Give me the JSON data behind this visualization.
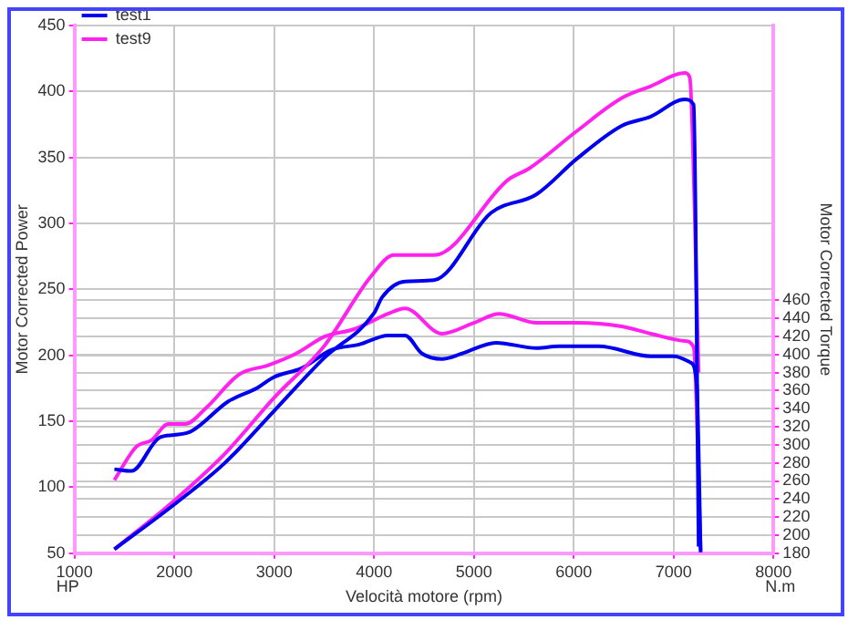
{
  "chart_data": {
    "type": "line",
    "xlabel": "Velocità motore (rpm)",
    "ylabel": "Motor Corrected Power",
    "y2label": "Motor Corrected Torque",
    "annotations": [
      "HP",
      "N.m"
    ],
    "xlim": [
      1000,
      8000
    ],
    "xticks": [
      1000,
      2000,
      3000,
      4000,
      5000,
      6000,
      7000,
      8000
    ],
    "ylim": [
      50,
      450
    ],
    "yticks": [
      50,
      100,
      150,
      200,
      250,
      300,
      350,
      400,
      450
    ],
    "y2lim": [
      180,
      764
    ],
    "y2ticks": [
      180,
      200,
      220,
      240,
      260,
      280,
      300,
      320,
      340,
      360,
      380,
      400,
      420,
      440,
      460
    ],
    "grid": true,
    "legend": "top left",
    "marker": "none",
    "line_style": "solid",
    "series": [
      {
        "name": "test1",
        "color": "#0000ee",
        "x": [
          1400,
          2000,
          2500,
          3000,
          3500,
          4000,
          4080,
          4310,
          4600,
          5170,
          5625,
          6030,
          6480,
          6770,
          7110,
          7200,
          7250
        ],
        "values": [
          53,
          87,
          118,
          158,
          198,
          232,
          244,
          256,
          257,
          308,
          322,
          349,
          374,
          381,
          394,
          390,
          55
        ]
      },
      {
        "name": "test9",
        "color": "#ff22ee",
        "x": [
          1400,
          2000,
          2500,
          3000,
          3500,
          3970,
          4200,
          4310,
          4600,
          5340,
          5560,
          6030,
          6480,
          6770,
          7110,
          7160,
          7250
        ],
        "values": [
          53,
          90,
          125,
          168,
          207,
          260,
          276,
          276,
          276,
          333,
          342,
          370,
          395,
          404,
          414,
          411,
          187
        ]
      },
      {
        "axis": "y2",
        "color": "#0000ee",
        "x": [
          1400,
          1570,
          1850,
          2000,
          2170,
          2540,
          2830,
          3000,
          3280,
          3570,
          3850,
          4140,
          4310,
          4480,
          4680,
          4880,
          5220,
          5630,
          5850,
          6250,
          6770,
          7000,
          7170,
          7230,
          7270
        ],
        "values": [
          273,
          271,
          308,
          311,
          315,
          348,
          363,
          375,
          385,
          405,
          411,
          421,
          421,
          401,
          395,
          401,
          413,
          407,
          409,
          409,
          398,
          398,
          391,
          368,
          181
        ]
      },
      {
        "axis": "y2",
        "color": "#ff22ee",
        "x": [
          1400,
          1620,
          1770,
          1940,
          2110,
          2320,
          2650,
          2940,
          3220,
          3510,
          3800,
          4140,
          4310,
          4680,
          5000,
          5250,
          5630,
          6030,
          6480,
          6770,
          7110,
          7200,
          7270
        ],
        "values": [
          261,
          298,
          305,
          323,
          323,
          341,
          378,
          388,
          401,
          420,
          428,
          445,
          451,
          423,
          435,
          445,
          435,
          435,
          431,
          423,
          415,
          408,
          183
        ]
      }
    ]
  }
}
